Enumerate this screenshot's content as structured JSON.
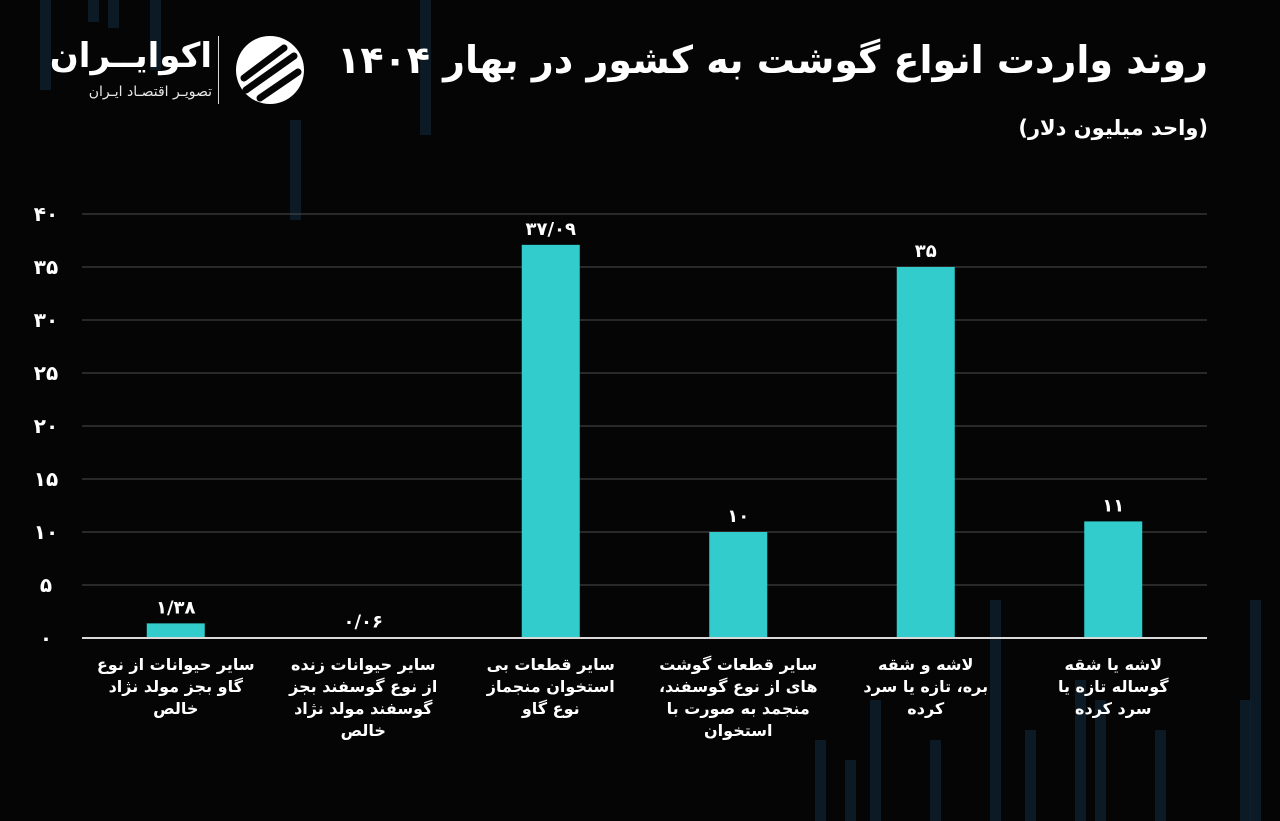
{
  "header": {
    "title": "روند واردت انواع گوشت به کشور در بهار ۱۴۰۴",
    "subtitle": "(واحد میلیون دلار)"
  },
  "brand": {
    "name": "اکوایــران",
    "tagline": "تصویـر اقتصـاد ایـران",
    "logo_icon": "ekoiran-logo-icon"
  },
  "colors": {
    "bar": "#33cccc",
    "background": "#050505",
    "grid": "#4d4d4d",
    "text": "#ffffff",
    "decor": "#0f2230"
  },
  "chart_data": {
    "type": "bar",
    "title": "روند واردت انواع گوشت به کشور در بهار ۱۴۰۴",
    "ylabel": "(واحد میلیون دلار)",
    "ylim": [
      0,
      40
    ],
    "yticks": [
      0,
      5,
      10,
      15,
      20,
      25,
      30,
      35,
      40
    ],
    "ytick_labels": [
      "۰",
      "۵",
      "۱۰",
      "۱۵",
      "۲۰",
      "۲۵",
      "۳۰",
      "۳۵",
      "۴۰"
    ],
    "grid": true,
    "categories": [
      [
        "سایر حیوانات از نوع",
        "گاو بجز مولد نژاد",
        "خالص"
      ],
      [
        "سایر حیوانات زنده",
        "از نوع گوسفند بجز",
        "گوسفند مولد نژاد",
        "خالص"
      ],
      [
        "سایر قطعات بی",
        "استخوان منجماز",
        "نوع گاو"
      ],
      [
        "سایر قطعات گوشت",
        "های از نوع گوسفند،",
        "منجمد به صورت با",
        "استخوان"
      ],
      [
        "لاشه و شقه",
        "بره، تازه یا سرد",
        "کرده"
      ],
      [
        "لاشه یا شقه",
        "گوساله تازه یا",
        "سرد کرده"
      ]
    ],
    "values": [
      1.38,
      0.06,
      37.09,
      10,
      35,
      11
    ],
    "value_labels": [
      "۱/۳۸",
      "۰/۰۶",
      "۳۷/۰۹",
      "۱۰",
      "۳۵",
      "۱۱"
    ]
  }
}
